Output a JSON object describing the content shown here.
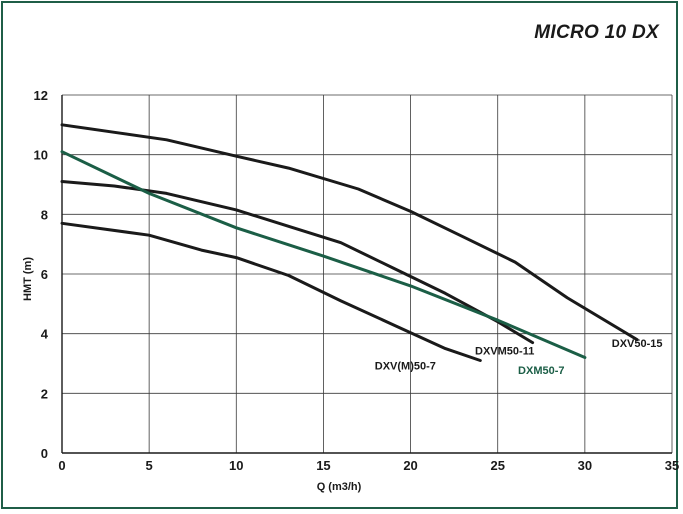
{
  "chart_data": {
    "type": "line",
    "title": "MICRO 10 DX",
    "xlabel": "Q (m3/h)",
    "ylabel": "HMT (m)",
    "xlim": [
      0,
      35
    ],
    "ylim": [
      0,
      12
    ],
    "x_ticks": [
      "0",
      "5",
      "10",
      "15",
      "20",
      "25",
      "30",
      "35"
    ],
    "y_ticks": [
      "0",
      "2",
      "4",
      "6",
      "8",
      "10",
      "12"
    ],
    "grid": true,
    "series": [
      {
        "name": "DXV50-15",
        "color": "#1a1a1a",
        "points": [
          [
            0,
            11.0
          ],
          [
            3,
            10.75
          ],
          [
            6,
            10.5
          ],
          [
            10,
            9.95
          ],
          [
            13,
            9.55
          ],
          [
            17,
            8.85
          ],
          [
            20,
            8.1
          ],
          [
            23,
            7.25
          ],
          [
            26,
            6.4
          ],
          [
            29,
            5.2
          ],
          [
            33,
            3.8
          ]
        ]
      },
      {
        "name": "DXVM50-11",
        "color": "#1a1a1a",
        "points": [
          [
            0,
            9.1
          ],
          [
            3,
            8.95
          ],
          [
            6,
            8.7
          ],
          [
            10,
            8.15
          ],
          [
            13,
            7.6
          ],
          [
            16,
            7.05
          ],
          [
            19,
            6.2
          ],
          [
            22,
            5.35
          ],
          [
            25,
            4.4
          ],
          [
            27,
            3.7
          ]
        ]
      },
      {
        "name": "DXV(M)50-7",
        "color": "#1a1a1a",
        "points": [
          [
            0,
            7.7
          ],
          [
            5,
            7.3
          ],
          [
            8,
            6.8
          ],
          [
            10,
            6.55
          ],
          [
            13,
            5.95
          ],
          [
            16,
            5.1
          ],
          [
            19,
            4.3
          ],
          [
            22,
            3.5
          ],
          [
            24,
            3.1
          ]
        ]
      },
      {
        "name": "DXM50-7",
        "color": "#1b5e46",
        "points": [
          [
            0,
            10.1
          ],
          [
            5,
            8.7
          ],
          [
            10,
            7.55
          ],
          [
            15,
            6.6
          ],
          [
            20,
            5.6
          ],
          [
            25,
            4.45
          ],
          [
            30,
            3.2
          ]
        ]
      }
    ]
  },
  "curve_labels": [
    {
      "text": "DXV50-15",
      "x": 33,
      "y": 3.55,
      "color": "#1a1a1a"
    },
    {
      "text": "DXVM50-11",
      "x": 25.4,
      "y": 3.3,
      "color": "#1a1a1a"
    },
    {
      "text": "DXV(M)50-7",
      "x": 19.7,
      "y": 2.8,
      "color": "#1a1a1a"
    },
    {
      "text": "DXM50-7",
      "x": 27.5,
      "y": 2.65,
      "color": "#1b5e46"
    }
  ]
}
